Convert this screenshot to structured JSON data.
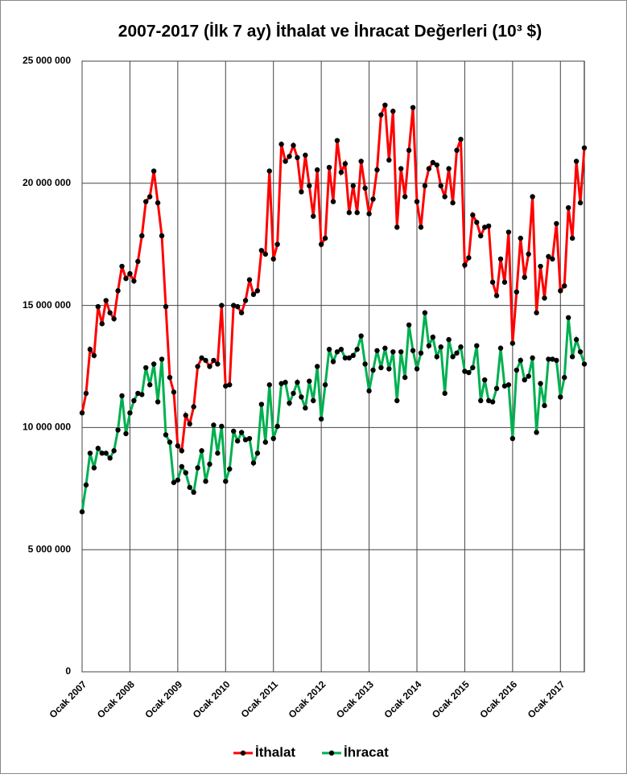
{
  "chart_data": {
    "type": "line",
    "title": "2007-2017 (İlk 7 ay) İthalat ve İhracat Değerleri (10³ $)",
    "categories": [
      "Ocak 2007",
      null,
      null,
      null,
      null,
      null,
      null,
      null,
      null,
      null,
      null,
      null,
      "Ocak 2008",
      null,
      null,
      null,
      null,
      null,
      null,
      null,
      null,
      null,
      null,
      null,
      "Ocak 2009",
      null,
      null,
      null,
      null,
      null,
      null,
      null,
      null,
      null,
      null,
      null,
      "Ocak 2010",
      null,
      null,
      null,
      null,
      null,
      null,
      null,
      null,
      null,
      null,
      null,
      "Ocak 2011",
      null,
      null,
      null,
      null,
      null,
      null,
      null,
      null,
      null,
      null,
      null,
      "Ocak 2012",
      null,
      null,
      null,
      null,
      null,
      null,
      null,
      null,
      null,
      null,
      null,
      "Ocak 2013",
      null,
      null,
      null,
      null,
      null,
      null,
      null,
      null,
      null,
      null,
      null,
      "Ocak 2014",
      null,
      null,
      null,
      null,
      null,
      null,
      null,
      null,
      null,
      null,
      null,
      "Ocak 2015",
      null,
      null,
      null,
      null,
      null,
      null,
      null,
      null,
      null,
      null,
      null,
      "Ocak 2016",
      null,
      null,
      null,
      null,
      null,
      null,
      null,
      null,
      null,
      null,
      null,
      "Ocak 2017",
      null,
      null,
      null,
      null,
      null,
      null
    ],
    "series": [
      {
        "name": "İthalat",
        "color": "#ff0000",
        "values": [
          10600000,
          11400000,
          13200000,
          12950000,
          14950000,
          14250000,
          15200000,
          14700000,
          14450000,
          15600000,
          16600000,
          16100000,
          16300000,
          16000000,
          16800000,
          17850000,
          19250000,
          19450000,
          20500000,
          19200000,
          17850000,
          14950000,
          12050000,
          11450000,
          9250000,
          9050000,
          10500000,
          10150000,
          10850000,
          12500000,
          12850000,
          12750000,
          12500000,
          12750000,
          12600000,
          15000000,
          11700000,
          11750000,
          15000000,
          14950000,
          14700000,
          15200000,
          16050000,
          15450000,
          15600000,
          17250000,
          17100000,
          20500000,
          16900000,
          17500000,
          21600000,
          20900000,
          21100000,
          21550000,
          21050000,
          19650000,
          21150000,
          19900000,
          18650000,
          20550000,
          17500000,
          17750000,
          20650000,
          19250000,
          21750000,
          20450000,
          20800000,
          18800000,
          19900000,
          18800000,
          20900000,
          19800000,
          18750000,
          19350000,
          20550000,
          22800000,
          23200000,
          20950000,
          22950000,
          18200000,
          20600000,
          19450000,
          21350000,
          23100000,
          19250000,
          18200000,
          19900000,
          20600000,
          20850000,
          20750000,
          19900000,
          19450000,
          20600000,
          19200000,
          21350000,
          21800000,
          16650000,
          16950000,
          18700000,
          18400000,
          17850000,
          18200000,
          18250000,
          15950000,
          15400000,
          16900000,
          15950000,
          18000000,
          13450000,
          15550000,
          17750000,
          16150000,
          17100000,
          19450000,
          14700000,
          16600000,
          15300000,
          17000000,
          16900000,
          18350000,
          15600000,
          15800000,
          19000000,
          17750000,
          20900000,
          19200000,
          21450000
        ]
      },
      {
        "name": "İhracat",
        "color": "#00b050",
        "values": [
          6550000,
          7650000,
          8950000,
          8350000,
          9150000,
          8950000,
          8950000,
          8750000,
          9050000,
          9900000,
          11300000,
          9750000,
          10600000,
          11100000,
          11400000,
          11350000,
          12450000,
          11750000,
          12600000,
          11050000,
          12800000,
          9700000,
          9400000,
          7750000,
          7850000,
          8400000,
          8150000,
          7550000,
          7350000,
          8350000,
          9050000,
          7800000,
          8500000,
          10100000,
          8950000,
          10050000,
          7800000,
          8300000,
          9850000,
          9450000,
          9800000,
          9500000,
          9550000,
          8550000,
          8950000,
          10950000,
          9400000,
          11750000,
          9550000,
          10050000,
          11800000,
          11850000,
          11000000,
          11400000,
          11850000,
          11250000,
          10800000,
          11900000,
          11100000,
          12500000,
          10350000,
          11750000,
          13200000,
          12700000,
          13100000,
          13200000,
          12850000,
          12850000,
          12950000,
          13200000,
          13750000,
          12600000,
          11500000,
          12350000,
          13150000,
          12450000,
          13250000,
          12400000,
          13100000,
          11100000,
          13100000,
          12050000,
          14200000,
          13150000,
          12400000,
          13050000,
          14700000,
          13350000,
          13700000,
          12900000,
          13300000,
          11400000,
          13600000,
          12900000,
          13050000,
          13300000,
          12300000,
          12250000,
          12450000,
          13350000,
          11100000,
          11950000,
          11100000,
          11050000,
          11600000,
          13250000,
          11700000,
          11750000,
          9550000,
          12350000,
          12750000,
          11950000,
          12100000,
          12850000,
          9800000,
          11800000,
          10900000,
          12800000,
          12800000,
          12750000,
          11250000,
          12050000,
          14500000,
          12900000,
          13600000,
          13100000,
          12600000
        ]
      }
    ],
    "ylim": [
      0,
      25000000
    ],
    "yticks": [
      0,
      {
        "value": 5000000,
        "label": "5 000 000"
      },
      {
        "value": 10000000,
        "label": "10 000 000"
      },
      {
        "value": 15000000,
        "label": "15 000 000"
      },
      {
        "value": 20000000,
        "label": "20 000 000"
      },
      {
        "value": 25000000,
        "label": "25 000 000"
      }
    ],
    "grid": true,
    "legend": "bottom",
    "marker_color": "#000000"
  }
}
